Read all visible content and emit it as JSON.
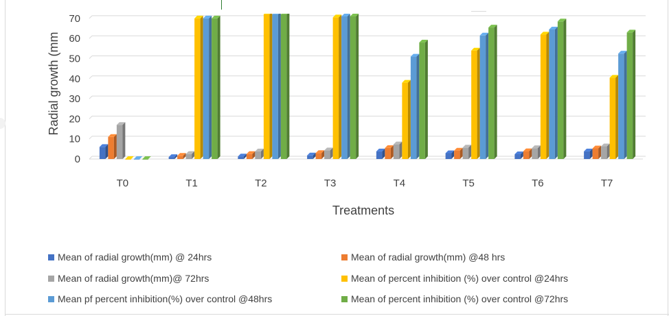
{
  "chart_data": {
    "type": "bar",
    "style": "3d-clustered-column",
    "xlabel": "Treatments",
    "ylabel": "Radial growth (mm",
    "ylim": [
      0,
      70
    ],
    "yticks": [
      0,
      10,
      20,
      30,
      40,
      50,
      60,
      70
    ],
    "grid": true,
    "legend_position": "bottom",
    "categories": [
      "T0",
      "T1",
      "T2",
      "T3",
      "T4",
      "T5",
      "T6",
      "T7"
    ],
    "series": [
      {
        "name": "Mean of radial growth(mm) @ 24hrs",
        "color": "#4472c4",
        "values": [
          6,
          1,
          1.3,
          1.8,
          3.8,
          2.9,
          2.4,
          3.8
        ]
      },
      {
        "name": "Mean of radial growth(mm) @48 hrs",
        "color": "#ed7d31",
        "values": [
          11,
          1.6,
          2.5,
          3,
          5.5,
          4.2,
          3.9,
          5.3
        ]
      },
      {
        "name": "Mean of radial growth(mm)@ 72hrs",
        "color": "#a5a5a5",
        "values": [
          17,
          2.5,
          3.8,
          4.3,
          7.3,
          5.7,
          5.4,
          6.3
        ]
      },
      {
        "name": "Mean of percent inhibition (%) over control @24hrs",
        "color": "#ffc000",
        "values": [
          0,
          70,
          72,
          70.5,
          38,
          54,
          62,
          40.5
        ]
      },
      {
        "name": "Mean pf percent inhibition(%) over control @48hrs",
        "color": "#5b9bd5",
        "values": [
          0,
          70,
          72,
          71,
          51,
          61.5,
          64.5,
          52.5
        ]
      },
      {
        "name": "Mean of percent inhibition (%) over control @72hrs",
        "color": "#70ad47",
        "values": [
          0,
          70,
          72,
          71,
          58,
          65.5,
          68.5,
          63
        ]
      }
    ]
  }
}
